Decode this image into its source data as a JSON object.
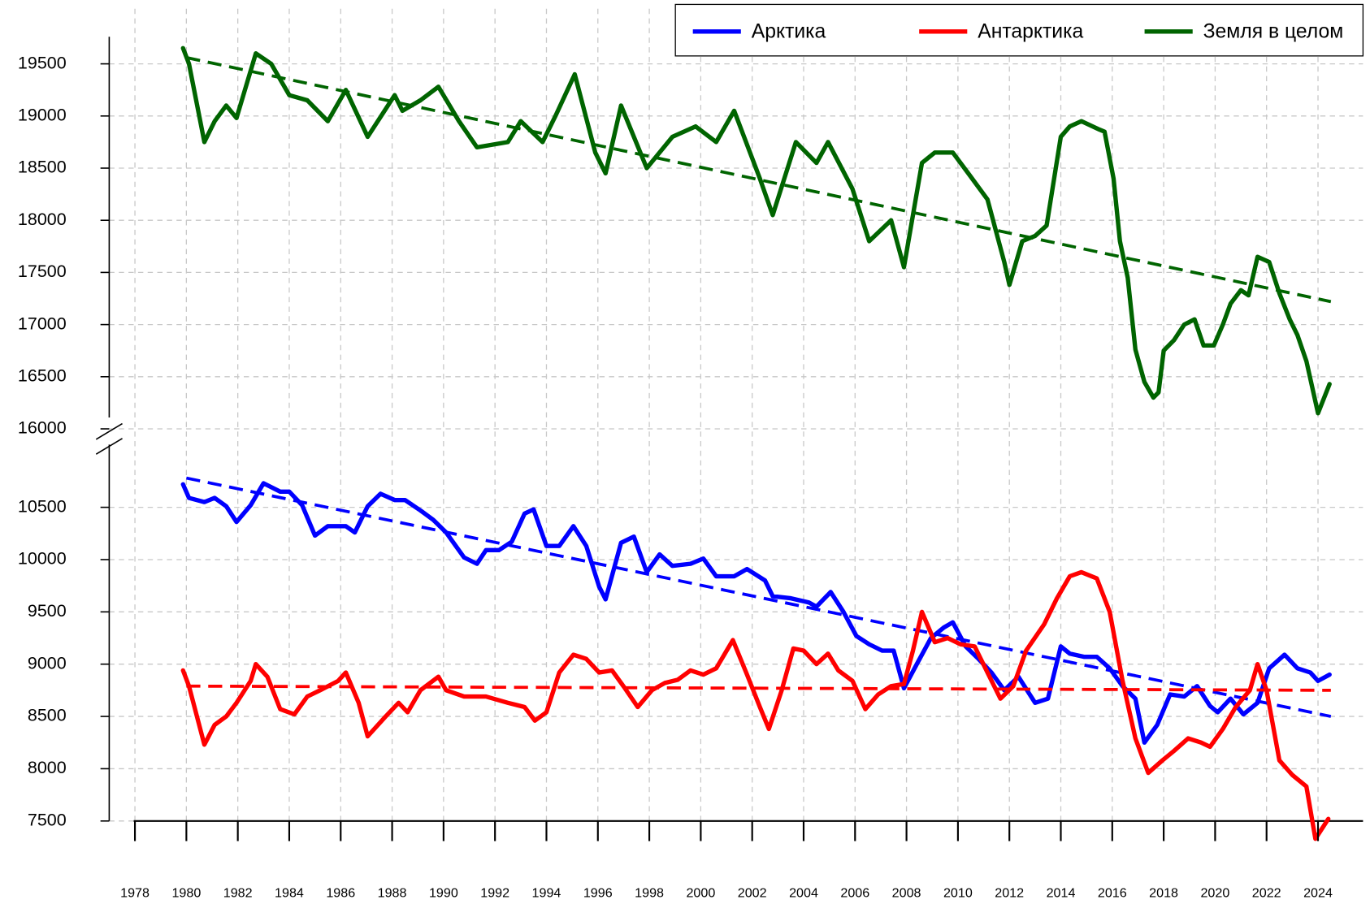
{
  "chart_data": {
    "type": "line",
    "xlim": [
      1977,
      2025.75
    ],
    "xticks": [
      1978,
      1980,
      1982,
      1984,
      1986,
      1988,
      1990,
      1992,
      1994,
      1996,
      1998,
      2000,
      2002,
      2004,
      2006,
      2008,
      2010,
      2012,
      2014,
      2016,
      2018,
      2020,
      2022,
      2024
    ],
    "ylim": [
      7500,
      11100
    ],
    "yticks": [
      7500,
      8000,
      8500,
      9000,
      9500,
      10000,
      10500
    ],
    "y2lim": [
      16000,
      19760
    ],
    "y2ticks": [
      16000,
      16500,
      17000,
      17500,
      18000,
      18500,
      19000,
      19500
    ],
    "grid": true,
    "legend": "top-right",
    "series": [
      {
        "name": "Арктика",
        "color": "#0000ff",
        "x": [
          1979.87,
          1980.1,
          1980.7,
          1981.1,
          1981.55,
          1981.95,
          1982.5,
          1983.0,
          1983.65,
          1984.0,
          1984.5,
          1985.0,
          1985.5,
          1986.2,
          1986.55,
          1987.05,
          1987.55,
          1988.1,
          1988.5,
          1989.1,
          1989.6,
          1990.1,
          1990.8,
          1991.3,
          1991.65,
          1992.15,
          1992.65,
          1993.15,
          1993.5,
          1994.0,
          1994.5,
          1995.05,
          1995.55,
          1996.05,
          1996.3,
          1996.9,
          1997.4,
          1997.9,
          1998.4,
          1998.9,
          1999.6,
          2000.1,
          2000.6,
          2001.3,
          2001.8,
          2002.5,
          2002.8,
          2003.5,
          2004.2,
          2004.5,
          2005.05,
          2005.55,
          2006.05,
          2006.55,
          2007.05,
          2007.5,
          2007.9,
          2008.4,
          2008.95,
          2009.45,
          2009.8,
          2010.3,
          2010.8,
          2011.3,
          2011.8,
          2012.35,
          2013.0,
          2013.5,
          2014.0,
          2014.35,
          2014.9,
          2015.4,
          2015.9,
          2016.4,
          2016.9,
          2017.25,
          2017.75,
          2018.25,
          2018.8,
          2019.3,
          2019.8,
          2020.1,
          2020.6,
          2021.1,
          2021.65,
          2022.1,
          2022.7,
          2023.2,
          2023.7,
          2024.0,
          2024.45
        ],
        "values": [
          10720,
          10590,
          10550,
          10590,
          10510,
          10360,
          10520,
          10730,
          10650,
          10650,
          10520,
          10230,
          10320,
          10320,
          10260,
          10510,
          10630,
          10570,
          10570,
          10470,
          10380,
          10260,
          10020,
          9960,
          10090,
          10090,
          10170,
          10440,
          10480,
          10130,
          10130,
          10320,
          10130,
          9740,
          9620,
          10160,
          10220,
          9880,
          10050,
          9940,
          9960,
          10010,
          9840,
          9840,
          9910,
          9800,
          9650,
          9630,
          9590,
          9550,
          9690,
          9500,
          9270,
          9190,
          9130,
          9130,
          8770,
          9000,
          9250,
          9350,
          9400,
          9170,
          9050,
          8920,
          8750,
          8880,
          8630,
          8670,
          9170,
          9100,
          9070,
          9070,
          8960,
          8790,
          8670,
          8250,
          8420,
          8710,
          8690,
          8790,
          8600,
          8540,
          8670,
          8520,
          8630,
          8960,
          9090,
          8960,
          8920,
          8840,
          8900
        ],
        "trend": {
          "x": [
            1980,
            2024.5
          ],
          "values": [
            10780,
            8500
          ]
        }
      },
      {
        "name": "Антарктика",
        "color": "#ff0000",
        "x": [
          1979.87,
          1980.1,
          1980.7,
          1981.1,
          1981.55,
          1981.95,
          1982.5,
          1982.7,
          1983.15,
          1983.65,
          1984.2,
          1984.7,
          1985.2,
          1985.9,
          1986.2,
          1986.7,
          1987.05,
          1987.75,
          1988.25,
          1988.6,
          1989.1,
          1989.8,
          1990.1,
          1990.8,
          1991.65,
          1992.5,
          1993.15,
          1993.55,
          1994.0,
          1994.5,
          1995.05,
          1995.55,
          1996.05,
          1996.55,
          1997.05,
          1997.55,
          1998.1,
          1998.6,
          1999.1,
          1999.6,
          2000.1,
          2000.6,
          2001.25,
          2001.8,
          2002.3,
          2002.65,
          2003.15,
          2003.6,
          2004.0,
          2004.5,
          2004.95,
          2005.35,
          2005.9,
          2006.4,
          2006.9,
          2007.4,
          2007.9,
          2008.25,
          2008.6,
          2009.1,
          2009.6,
          2010.1,
          2010.65,
          2011.15,
          2011.65,
          2012.15,
          2012.65,
          2013.35,
          2013.85,
          2014.35,
          2014.8,
          2015.4,
          2015.9,
          2016.4,
          2016.9,
          2017.4,
          2017.95,
          2018.4,
          2018.95,
          2019.45,
          2019.8,
          2020.3,
          2020.8,
          2021.35,
          2021.65,
          2022.0,
          2022.5,
          2023.0,
          2023.55,
          2023.9,
          2024.4
        ],
        "values": [
          8940,
          8790,
          8230,
          8420,
          8500,
          8630,
          8840,
          9000,
          8880,
          8570,
          8520,
          8690,
          8750,
          8840,
          8920,
          8630,
          8310,
          8500,
          8630,
          8540,
          8750,
          8880,
          8750,
          8690,
          8690,
          8630,
          8590,
          8460,
          8540,
          8920,
          9090,
          9050,
          8920,
          8940,
          8770,
          8590,
          8750,
          8820,
          8850,
          8940,
          8900,
          8960,
          9230,
          8900,
          8590,
          8380,
          8750,
          9150,
          9130,
          9000,
          9100,
          8940,
          8840,
          8570,
          8710,
          8790,
          8810,
          9130,
          9500,
          9210,
          9250,
          9190,
          9170,
          8920,
          8670,
          8790,
          9130,
          9380,
          9630,
          9840,
          9880,
          9820,
          9500,
          8840,
          8290,
          7960,
          8080,
          8170,
          8290,
          8250,
          8210,
          8380,
          8590,
          8750,
          9000,
          8750,
          8080,
          7940,
          7830,
          7330,
          7520
        ],
        "trend": {
          "x": [
            1980,
            2024.5
          ],
          "values": [
            8790,
            8750
          ]
        }
      },
      {
        "name": "Земля в целом",
        "color": "#006400",
        "axis": "y2",
        "x": [
          1979.87,
          1980.1,
          1980.7,
          1981.1,
          1981.55,
          1981.95,
          1982.7,
          1983.3,
          1984.0,
          1984.7,
          1985.5,
          1986.2,
          1987.05,
          1988.1,
          1988.4,
          1989.1,
          1989.8,
          1990.6,
          1991.3,
          1992.5,
          1993.0,
          1993.85,
          1994.35,
          1995.1,
          1995.9,
          1996.3,
          1996.9,
          1997.9,
          1998.9,
          1999.8,
          2000.6,
          2001.3,
          2002.3,
          2002.8,
          2003.7,
          2004.5,
          2004.95,
          2005.9,
          2006.55,
          2007.4,
          2007.9,
          2008.6,
          2009.1,
          2009.8,
          2010.4,
          2011.15,
          2011.8,
          2012.0,
          2012.5,
          2013.0,
          2013.45,
          2014.0,
          2014.35,
          2014.8,
          2015.5,
          2015.7,
          2016.05,
          2016.3,
          2016.6,
          2016.9,
          2017.25,
          2017.6,
          2017.8,
          2018.0,
          2018.4,
          2018.8,
          2019.2,
          2019.55,
          2019.95,
          2020.3,
          2020.6,
          2021.0,
          2021.3,
          2021.65,
          2022.1,
          2022.5,
          2022.9,
          2023.2,
          2023.55,
          2024.0,
          2024.45
        ],
        "values": [
          19650,
          19500,
          18750,
          18950,
          19100,
          18980,
          19600,
          19500,
          19200,
          19150,
          18950,
          19250,
          18800,
          19200,
          19050,
          19150,
          19280,
          18950,
          18700,
          18750,
          18950,
          18750,
          19000,
          19400,
          18650,
          18450,
          19100,
          18500,
          18800,
          18900,
          18750,
          19050,
          18400,
          18050,
          18750,
          18550,
          18750,
          18300,
          17800,
          18000,
          17550,
          18550,
          18650,
          18650,
          18450,
          18200,
          17600,
          17380,
          17800,
          17850,
          17950,
          18800,
          18900,
          18950,
          18870,
          18850,
          18400,
          17800,
          17450,
          16760,
          16450,
          16300,
          16350,
          16750,
          16850,
          17000,
          17050,
          16800,
          16800,
          17000,
          17200,
          17330,
          17280,
          17650,
          17600,
          17300,
          17050,
          16900,
          16650,
          16150,
          16430
        ],
        "trend": {
          "x": [
            1980,
            2024.5
          ],
          "values": [
            19560,
            17220
          ]
        }
      }
    ]
  }
}
